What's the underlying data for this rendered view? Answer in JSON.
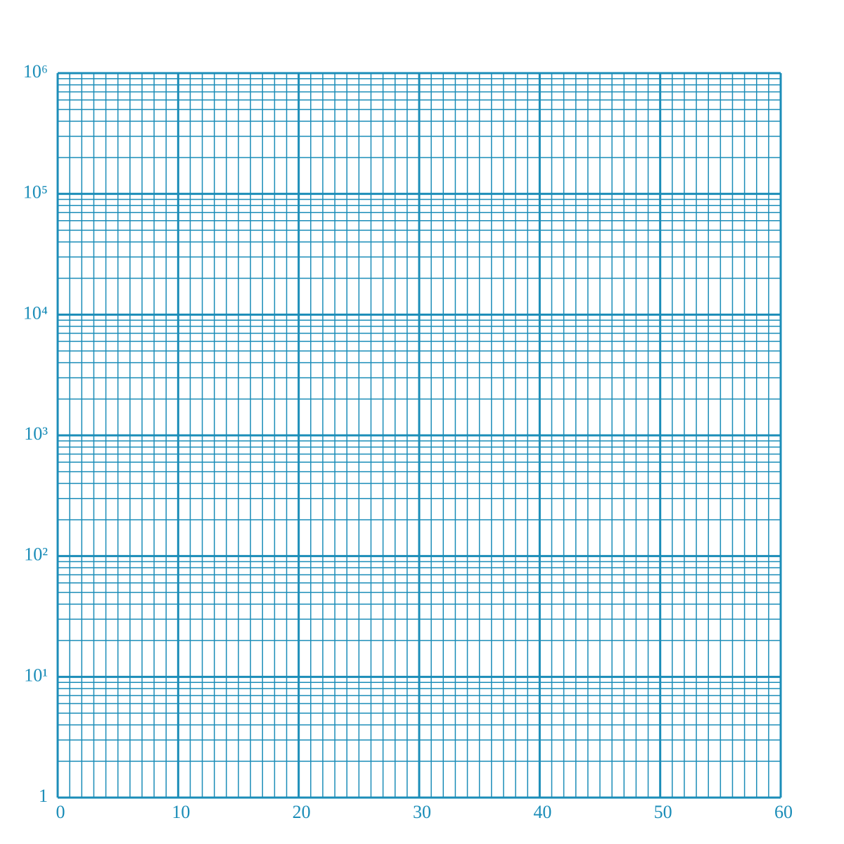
{
  "chart_data": {
    "type": "grid",
    "color": "#1b8db8",
    "ylog": true,
    "grid": true,
    "minor_grid": true,
    "xlim": [
      0,
      60
    ],
    "xticks": [
      0,
      10,
      20,
      30,
      40,
      50,
      60
    ],
    "ylim": [
      1,
      1000000
    ],
    "yticks": [
      1,
      {
        "value": 10,
        "label": "10¹"
      },
      {
        "value": 100,
        "label": "10²"
      },
      {
        "value": 1000,
        "label": "10³"
      },
      {
        "value": 10000,
        "label": "10⁴"
      },
      {
        "value": 100000,
        "label": "10⁵"
      },
      {
        "value": 1000000,
        "label": "10⁶"
      }
    ]
  }
}
